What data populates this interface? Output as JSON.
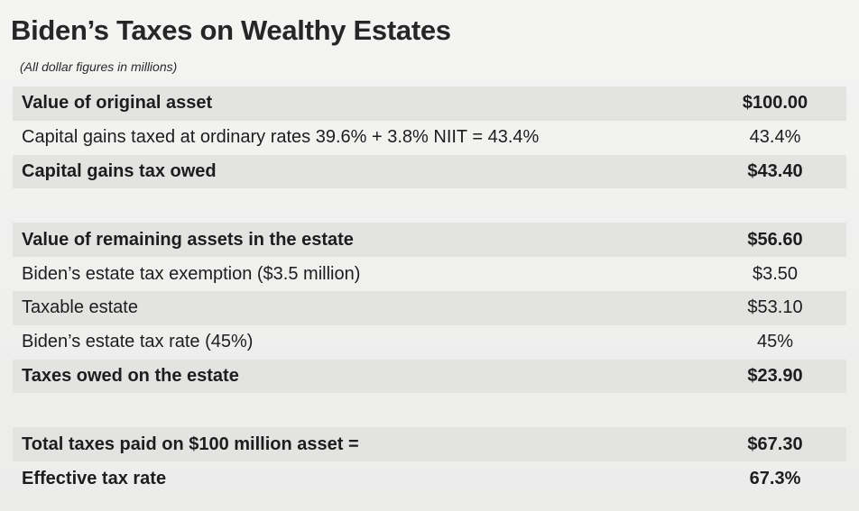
{
  "header": {
    "title": "Biden’s Taxes on Wealthy Estates",
    "subtitle": "(All dollar figures in millions)"
  },
  "rows": [
    {
      "label": "Value of original asset",
      "value": "$100.00"
    },
    {
      "label": "Capital gains taxed at ordinary rates 39.6% + 3.8% NIIT = 43.4%",
      "value": "43.4%"
    },
    {
      "label": "Capital gains tax owed",
      "value": "$43.40"
    },
    {
      "label": "Value of remaining assets in the estate",
      "value": "$56.60"
    },
    {
      "label": "Biden’s estate tax exemption ($3.5 million)",
      "value": "$3.50"
    },
    {
      "label": "Taxable estate",
      "value": "$53.10"
    },
    {
      "label": "Biden’s estate tax rate (45%)",
      "value": "45%"
    },
    {
      "label": "Taxes owed on the estate",
      "value": "$23.90"
    },
    {
      "label": "Total taxes paid on $100 million asset =",
      "value": "$67.30"
    },
    {
      "label": "Effective tax rate",
      "value": "67.3%"
    }
  ]
}
